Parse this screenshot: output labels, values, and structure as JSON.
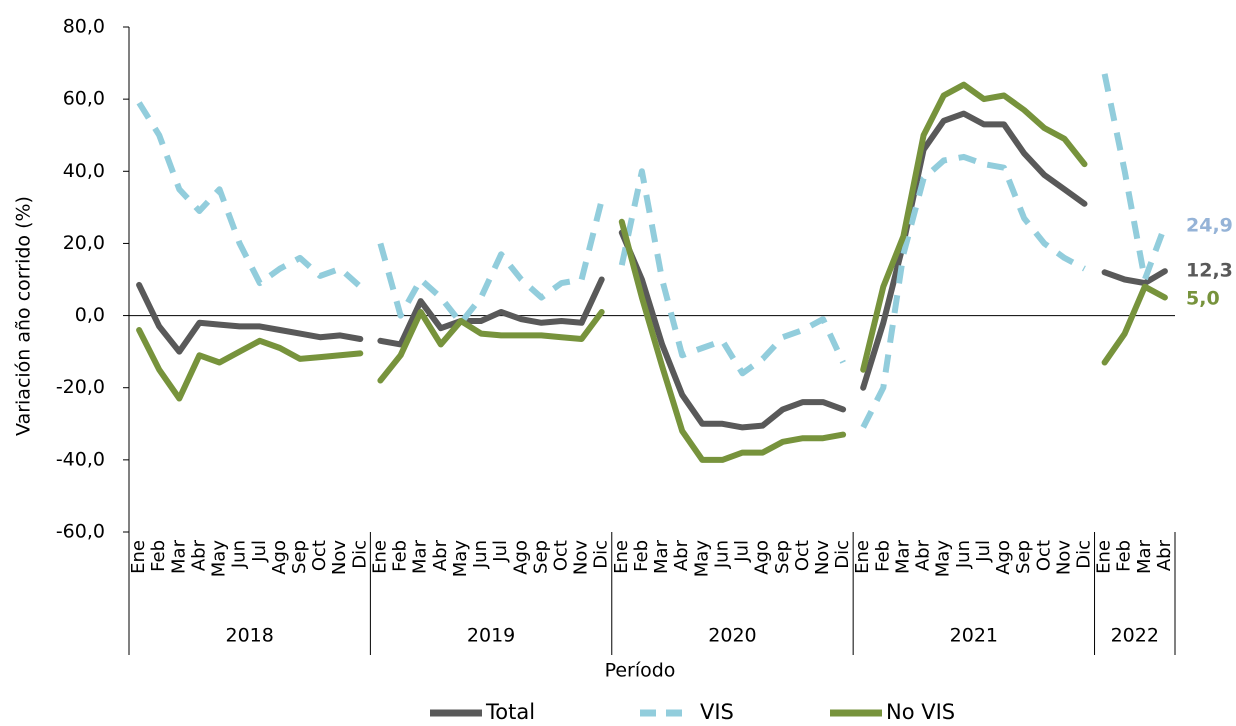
{
  "chart_data": {
    "type": "line",
    "y_axis_label": "Variación año corrido (%)",
    "x_axis_label": "Período",
    "ylim": [
      -60,
      80
    ],
    "yticks": [
      {
        "value": -60,
        "label": "-60,0"
      },
      {
        "value": -40,
        "label": "-40,0"
      },
      {
        "value": -20,
        "label": "-20,0"
      },
      {
        "value": 0,
        "label": "0,0"
      },
      {
        "value": 20,
        "label": "20,0"
      },
      {
        "value": 40,
        "label": "40,0"
      },
      {
        "value": 60,
        "label": "60,0"
      },
      {
        "value": 80,
        "label": "80,0"
      }
    ],
    "groups": [
      {
        "label": "2018",
        "categories": [
          "Ene",
          "Feb",
          "Mar",
          "Abr",
          "May",
          "Jun",
          "Jul",
          "Ago",
          "Sep",
          "Oct",
          "Nov",
          "Dic"
        ]
      },
      {
        "label": "2019",
        "categories": [
          "Ene",
          "Feb",
          "Mar",
          "Abr",
          "May",
          "Jun",
          "Jul",
          "Ago",
          "Sep",
          "Oct",
          "Nov",
          "Dic"
        ]
      },
      {
        "label": "2020",
        "categories": [
          "Ene",
          "Feb",
          "Mar",
          "Abr",
          "May",
          "Jun",
          "Jul",
          "Ago",
          "Sep",
          "Oct",
          "Nov",
          "Dic"
        ]
      },
      {
        "label": "2021",
        "categories": [
          "Ene",
          "Feb",
          "Mar",
          "Abr",
          "May",
          "Jun",
          "Jul",
          "Ago",
          "Sep",
          "Oct",
          "Nov",
          "Dic"
        ]
      },
      {
        "label": "2022",
        "categories": [
          "Ene",
          "Feb",
          "Mar",
          "Abr"
        ]
      }
    ],
    "series": [
      {
        "name": "Total",
        "color": "#595959",
        "dashed": false,
        "end_label": "12,3",
        "values": [
          [
            8.5,
            -3,
            -10,
            -2,
            -2.5,
            -3,
            -3,
            -4,
            -5,
            -6,
            -5.5,
            -6.5
          ],
          [
            -7,
            -8,
            4,
            -3.5,
            -1.5,
            -1.5,
            1,
            -1,
            -2,
            -1.5,
            -2,
            10
          ],
          [
            23,
            10,
            -8,
            -22,
            -30,
            -30,
            -31,
            -30.5,
            -26,
            -24,
            -24,
            -26
          ],
          [
            -20,
            -2,
            20,
            46,
            54,
            56,
            53,
            53,
            45,
            39,
            35,
            31
          ],
          [
            12,
            10,
            9,
            12.3
          ]
        ]
      },
      {
        "name": "VIS",
        "color": "#92cddc",
        "dashed": true,
        "end_label": "24,9",
        "values": [
          [
            59,
            50,
            35,
            29,
            35,
            20,
            9,
            13,
            16,
            11,
            13,
            8
          ],
          [
            20,
            0,
            10,
            5,
            -2,
            5,
            17,
            10,
            5,
            9,
            10,
            32
          ],
          [
            14,
            40,
            10,
            -11,
            -9,
            -7,
            -16,
            -12,
            -6,
            -4,
            -1,
            -13
          ],
          [
            -31,
            -20,
            17,
            38,
            43,
            44,
            42,
            41,
            27,
            20,
            16,
            13
          ],
          [
            67,
            40,
            10,
            24.9
          ]
        ]
      },
      {
        "name": "No VIS",
        "color": "#77933c",
        "dashed": false,
        "end_label": "5,0",
        "values": [
          [
            -4,
            -15,
            -23,
            -11,
            -13,
            -10,
            -7,
            -9,
            -12,
            -11.5,
            -11,
            -10.5
          ],
          [
            -18,
            -11,
            1,
            -8,
            -1.5,
            -5,
            -5.5,
            -5.5,
            -5.5,
            -6,
            -6.5,
            1
          ],
          [
            26,
            5,
            -14,
            -32,
            -40,
            -40,
            -38,
            -38,
            -35,
            -34,
            -34,
            -33
          ],
          [
            -15,
            8,
            22,
            50,
            61,
            64,
            60,
            61,
            57,
            52,
            49,
            42
          ],
          [
            -13,
            -5,
            8,
            5.0
          ]
        ]
      }
    ]
  }
}
